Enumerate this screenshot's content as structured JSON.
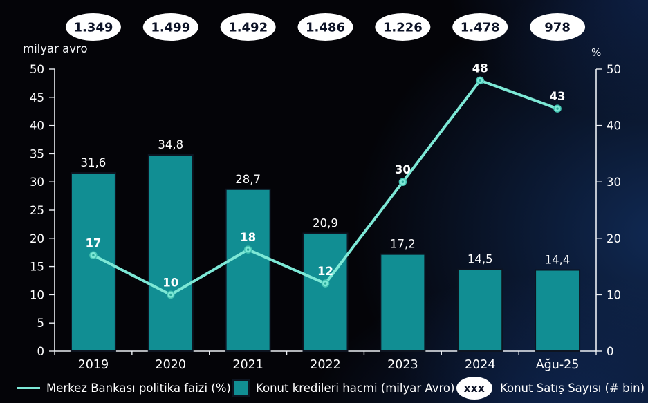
{
  "chart_data": {
    "type": "bar",
    "categories": [
      "2019",
      "2020",
      "2021",
      "2022",
      "2023",
      "2024",
      "Ağu-25"
    ],
    "series": [
      {
        "name": "Konut kredileri hacmi (milyar Avro)",
        "type": "bar",
        "axis": "left",
        "values": [
          31.6,
          34.8,
          28.7,
          20.9,
          17.2,
          14.5,
          14.4
        ],
        "labels": [
          "31,6",
          "34,8",
          "28,7",
          "20,9",
          "17,2",
          "14,5",
          "14,4"
        ],
        "color": "#118e93"
      },
      {
        "name": "Merkez Bankası politika faizi (%)",
        "type": "line",
        "axis": "right",
        "values": [
          17,
          10,
          18,
          12,
          30,
          48,
          43
        ],
        "labels": [
          "17",
          "10",
          "18",
          "12",
          "30",
          "48",
          "43"
        ],
        "color": "#7de8d6"
      },
      {
        "name": "Konut Satış Sayısı (# bin)",
        "type": "badge",
        "values": [
          1349,
          1499,
          1492,
          1486,
          1226,
          1478,
          978
        ],
        "labels": [
          "1.349",
          "1.499",
          "1.492",
          "1.486",
          "1.226",
          "1.478",
          "978"
        ]
      }
    ],
    "left_axis": {
      "title": "milyar avro",
      "min": 0,
      "max": 50,
      "step": 5,
      "ticks": [
        "0",
        "5",
        "10",
        "15",
        "20",
        "25",
        "30",
        "35",
        "40",
        "45",
        "50"
      ]
    },
    "right_axis": {
      "title": "%",
      "min": 0,
      "max": 50,
      "step": 10,
      "ticks": [
        "0",
        "10",
        "20",
        "30",
        "40",
        "50"
      ]
    },
    "grid": false,
    "legend_position": "bottom"
  },
  "legend": {
    "line_label": "Merkez Bankası politika faizi (%)",
    "bar_label": "Konut kredileri hacmi (milyar Avro)",
    "badge_swatch": "xxx",
    "badge_label": "Konut Satış Sayısı (# bin)"
  },
  "colors": {
    "bar": "#118e93",
    "bar_border": "#0d1420",
    "line": "#7de8d6",
    "marker_ring": "#45c4b3",
    "marker_dot": "#2ba99a",
    "axis": "#eceff3",
    "text": "#ffffff",
    "badge_bg": "#ffffff",
    "badge_text": "#0c1226"
  }
}
